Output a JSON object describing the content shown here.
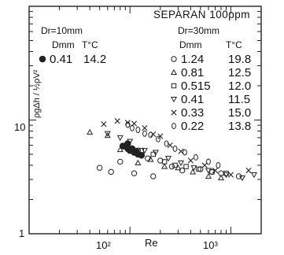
{
  "chart_data": {
    "type": "scatter",
    "title": "SEPARAN  100ppm",
    "xlabel": "Re",
    "ylabel": "ρgΔh / ½ρV²",
    "xscale": "log",
    "yscale": "log",
    "xlim": [
      10,
      2000
    ],
    "ylim": [
      1,
      100
    ],
    "xticks": [
      {
        "value": 100,
        "label": "10²"
      },
      {
        "value": 1000,
        "label": "10³"
      }
    ],
    "yticks": [
      {
        "value": 10,
        "label": "10"
      },
      {
        "value": 1,
        "label": "1"
      }
    ],
    "legend": {
      "position": "top",
      "group1": {
        "header": "Dr=10mm",
        "col1": "Dmm",
        "col2": "T°C"
      },
      "group2": {
        "header": "Dr=30mm",
        "col1": "Dmm",
        "col2": "T°C"
      }
    },
    "series": [
      {
        "marker": "filled-circle",
        "dr": "10",
        "d": "0.41",
        "t": "14.2",
        "points": [
          [
            85,
            5.9
          ],
          [
            95,
            5.6
          ],
          [
            100,
            5.4
          ],
          [
            105,
            5.6
          ],
          [
            110,
            5.2
          ],
          [
            95,
            6.2
          ],
          [
            120,
            5.0
          ],
          [
            130,
            4.9
          ],
          [
            115,
            5.3
          ]
        ]
      },
      {
        "marker": "circle",
        "dr": "30",
        "d": "1.24",
        "t": "19.8",
        "points": [
          [
            50,
            3.8
          ],
          [
            65,
            3.5
          ],
          [
            80,
            4.3
          ],
          [
            110,
            3.4
          ],
          [
            120,
            5.4
          ],
          [
            150,
            4.6
          ],
          [
            170,
            3.2
          ],
          [
            200,
            4.4
          ],
          [
            260,
            3.9
          ],
          [
            330,
            3.6
          ],
          [
            500,
            3.7
          ],
          [
            650,
            3.5
          ],
          [
            800,
            3.4
          ],
          [
            1200,
            3.2
          ]
        ]
      },
      {
        "marker": "triangle-up",
        "dr": "30",
        "d": "0.81",
        "t": "12.5",
        "points": [
          [
            40,
            7.8
          ],
          [
            60,
            7.3
          ],
          [
            80,
            5.5
          ],
          [
            120,
            4.2
          ],
          [
            160,
            4.5
          ],
          [
            220,
            3.9
          ],
          [
            300,
            3.8
          ],
          [
            420,
            3.5
          ],
          [
            600,
            3.2
          ],
          [
            800,
            3.1
          ]
        ]
      },
      {
        "marker": "square",
        "dr": "30",
        "d": "0.515",
        "t": "12.0",
        "points": [
          [
            130,
            5.4
          ],
          [
            170,
            5.0
          ],
          [
            220,
            4.3
          ],
          [
            280,
            4.0
          ],
          [
            360,
            3.9
          ],
          [
            480,
            3.7
          ],
          [
            650,
            3.5
          ],
          [
            900,
            3.4
          ]
        ]
      },
      {
        "marker": "triangle-down",
        "dr": "30",
        "d": "0.41",
        "t": "11.5",
        "points": [
          [
            60,
            7.6
          ],
          [
            80,
            7.0
          ],
          [
            100,
            6.5
          ],
          [
            140,
            5.4
          ],
          [
            180,
            5.2
          ],
          [
            240,
            4.6
          ],
          [
            320,
            4.2
          ],
          [
            430,
            3.8
          ],
          [
            600,
            3.6
          ],
          [
            900,
            3.3
          ],
          [
            1300,
            3.1
          ],
          [
            1700,
            3.3
          ]
        ]
      },
      {
        "marker": "cross",
        "dr": "30",
        "d": "0.33",
        "t": "15.0",
        "points": [
          [
            55,
            9.2
          ],
          [
            75,
            9.8
          ],
          [
            95,
            9.5
          ],
          [
            110,
            9.3
          ],
          [
            140,
            8.5
          ],
          [
            170,
            7.5
          ],
          [
            200,
            7.2
          ],
          [
            250,
            6.0
          ],
          [
            320,
            5.3
          ],
          [
            400,
            4.4
          ],
          [
            550,
            4.0
          ],
          [
            700,
            3.6
          ],
          [
            1000,
            3.3
          ],
          [
            1500,
            3.6
          ]
        ]
      },
      {
        "marker": "zero",
        "dr": "30",
        "d": "0.22",
        "t": "13.8",
        "points": [
          [
            95,
            9.1
          ],
          [
            105,
            8.5
          ],
          [
            120,
            8.2
          ],
          [
            140,
            7.6
          ],
          [
            160,
            7.4
          ],
          [
            190,
            6.8
          ],
          [
            230,
            6.2
          ],
          [
            280,
            5.6
          ],
          [
            350,
            5.2
          ],
          [
            450,
            4.7
          ],
          [
            600,
            4.3
          ],
          [
            750,
            4.0
          ]
        ]
      }
    ]
  }
}
